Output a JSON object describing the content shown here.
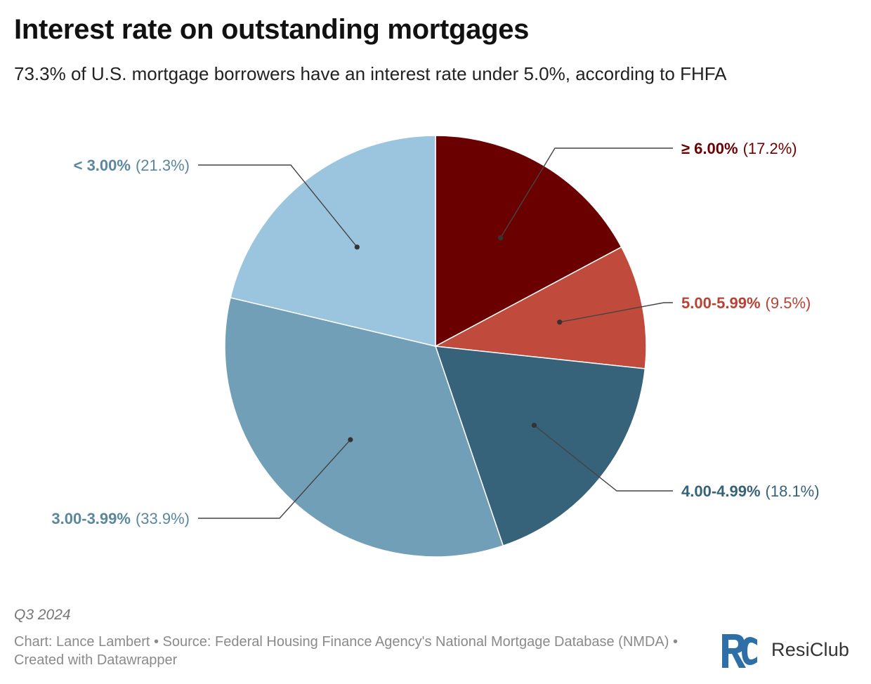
{
  "header": {
    "title": "Interest rate on outstanding mortgages",
    "subtitle": "73.3% of U.S. mortgage borrowers have an interest rate under 5.0%, according to FHFA"
  },
  "chart_data": {
    "type": "pie",
    "slices": [
      {
        "label": "≥ 6.00%",
        "value": 17.2,
        "value_label": "(17.2%)",
        "color": "#6b0000"
      },
      {
        "label": "5.00-5.99%",
        "value": 9.5,
        "value_label": "(9.5%)",
        "color": "#c04a3c"
      },
      {
        "label": "4.00-4.99%",
        "value": 18.1,
        "value_label": "(18.1%)",
        "color": "#36627a"
      },
      {
        "label": "3.00-3.99%",
        "value": 33.9,
        "value_label": "(33.9%)",
        "color": "#729fb8"
      },
      {
        "label": "< 3.00%",
        "value": 21.3,
        "value_label": "(21.3%)",
        "color": "#9bc5de"
      }
    ],
    "label_colors": {
      "≥ 6.00%": "#6b0000",
      "5.00-5.99%": "#b94234",
      "4.00-4.99%": "#36627a",
      "3.00-3.99%": "#5a87a0",
      "< 3.00%": "#5a87a0"
    }
  },
  "notes": "Q3 2024",
  "footer": {
    "credit": "Chart: Lance Lambert • Source: Federal Housing Finance Agency's National Mortgage Database (NMDA) • Created with Datawrapper"
  },
  "brand": {
    "name": "ResiClub",
    "logo_icon": "resiclub-logo-icon",
    "logo_color": "#2e6fa8"
  }
}
